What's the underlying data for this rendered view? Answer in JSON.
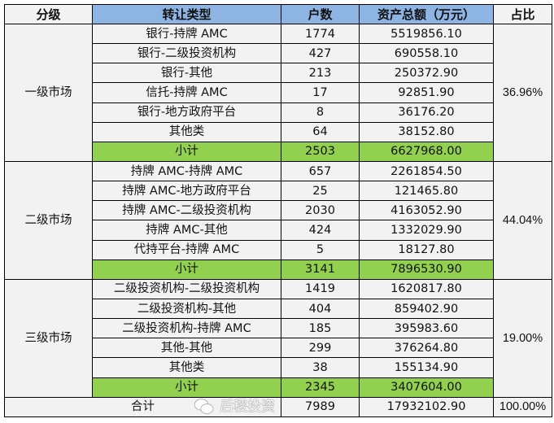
{
  "header": {
    "level": "分级",
    "type": "转让类型",
    "count": "户数",
    "assets": "资产总额（万元）",
    "share": "占比"
  },
  "groups": [
    {
      "level": "一级市场",
      "share": "36.96%",
      "rows": [
        {
          "type": "银行-持牌 AMC",
          "count": "1774",
          "assets": "5519856.10"
        },
        {
          "type": "银行-二级投资机构",
          "count": "427",
          "assets": "690558.10"
        },
        {
          "type": "银行-其他",
          "count": "213",
          "assets": "250372.90"
        },
        {
          "type": "信托-持牌 AMC",
          "count": "17",
          "assets": "92851.90"
        },
        {
          "type": "银行-地方政府平台",
          "count": "8",
          "assets": "36176.20"
        },
        {
          "type": "其他类",
          "count": "64",
          "assets": "38152.80"
        }
      ],
      "subtotal": {
        "label": "小计",
        "count": "2503",
        "assets": "6627968.00"
      }
    },
    {
      "level": "二级市场",
      "share": "44.04%",
      "rows": [
        {
          "type": "持牌 AMC-持牌 AMC",
          "count": "657",
          "assets": "2261854.50"
        },
        {
          "type": "持牌 AMC-地方政府平台",
          "count": "25",
          "assets": "121465.80"
        },
        {
          "type": "持牌 AMC-二级投资机构",
          "count": "2030",
          "assets": "4163052.90"
        },
        {
          "type": "持牌 AMC-其他",
          "count": "424",
          "assets": "1332029.90"
        },
        {
          "type": "代持平台-持牌 AMC",
          "count": "5",
          "assets": "18127.80"
        }
      ],
      "subtotal": {
        "label": "小计",
        "count": "3141",
        "assets": "7896530.90"
      }
    },
    {
      "level": "三级市场",
      "share": "19.00%",
      "rows": [
        {
          "type": "二级投资机构-二级投资机构",
          "count": "1419",
          "assets": "1620817.80"
        },
        {
          "type": "二级投资机构-其他",
          "count": "404",
          "assets": "859402.90"
        },
        {
          "type": "二级投资机构-持牌 AMC",
          "count": "185",
          "assets": "395983.60"
        },
        {
          "type": "其他-其他",
          "count": "299",
          "assets": "376264.80"
        },
        {
          "type": "其他类",
          "count": "38",
          "assets": "155134.90"
        }
      ],
      "subtotal": {
        "label": "小计",
        "count": "2345",
        "assets": "3407604.00"
      }
    }
  ],
  "total": {
    "label": "合计",
    "count": "7989",
    "assets": "17932102.90",
    "share": "100.00%"
  },
  "watermark": {
    "text": "后稷投资",
    "icon": "wechat-icon"
  },
  "colors": {
    "header_blue": "#8db4e2",
    "subtotal_green": "#92d050",
    "cell_gray": "#f2f2f2"
  }
}
